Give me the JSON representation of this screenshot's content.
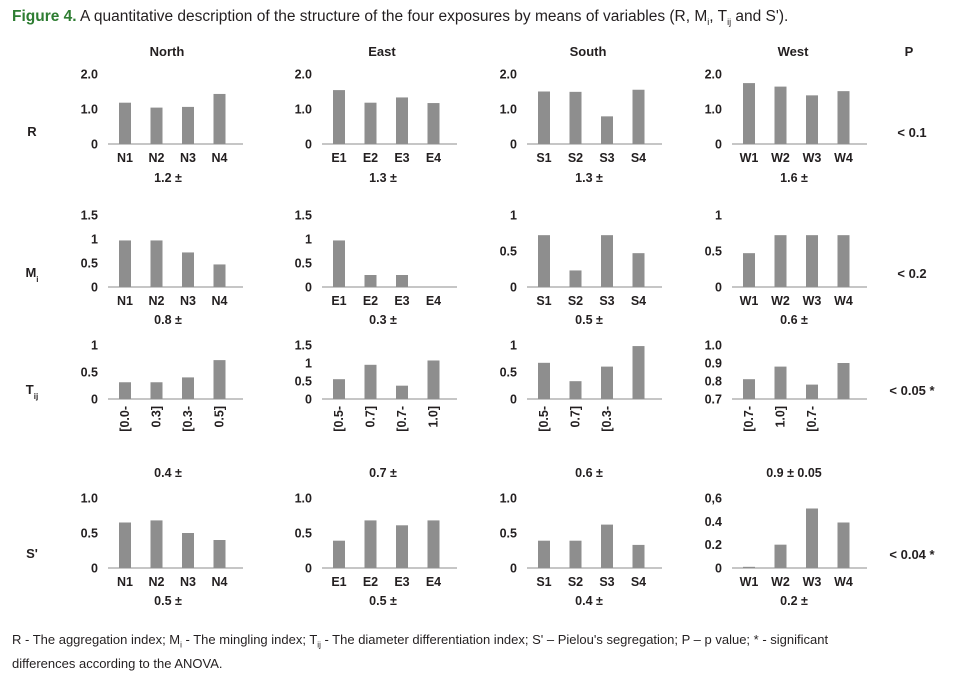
{
  "caption": {
    "label": "Figure 4.",
    "text_before": " A quantitative description of the structure of the four exposures by means of variables (R, M",
    "sub_i": "i",
    "text_mid": ", T",
    "sub_ij": "ij",
    "text_after": " and S')."
  },
  "columns": [
    "North",
    "East",
    "South",
    "West"
  ],
  "p_header": "P",
  "rows": [
    {
      "label": "R",
      "sub": "",
      "p": "< 0.1"
    },
    {
      "label": "M",
      "sub": "i",
      "p": "< 0.2"
    },
    {
      "label": "T",
      "sub": "ij",
      "p": "< 0.05 *"
    },
    {
      "label": "S'",
      "sub": "",
      "p": "< 0.04 *"
    }
  ],
  "footnote": {
    "l1_a": "R - The aggregation index; M",
    "l1_sub1": "i",
    "l1_b": " - The mingling index; T",
    "l1_sub2": "ij",
    "l1_c": " - The diameter differentiation index; S' – Pielou's segregation; P – p value; * - significant",
    "l2": "differences according to the ANOVA."
  },
  "colors": {
    "bar": "#8e8e8e",
    "axis": "#8e8e8e",
    "caption_label": "#2e7d32"
  },
  "chart_data": [
    {
      "type": "bar",
      "row": "R",
      "exposure": "North",
      "categories": [
        "N1",
        "N2",
        "N3",
        "N4"
      ],
      "values": [
        1.18,
        1.04,
        1.06,
        1.43
      ],
      "ylim": [
        0,
        2.0
      ],
      "yticks": [
        "2.0",
        "1.0",
        "0"
      ],
      "ytick_values": [
        2.0,
        1.0,
        0
      ],
      "summary": "1.2 ±"
    },
    {
      "type": "bar",
      "row": "R",
      "exposure": "East",
      "categories": [
        "E1",
        "E2",
        "E3",
        "E4"
      ],
      "values": [
        1.54,
        1.18,
        1.33,
        1.17
      ],
      "ylim": [
        0,
        2.0
      ],
      "yticks": [
        "2.0",
        "1.0",
        "0"
      ],
      "ytick_values": [
        2.0,
        1.0,
        0
      ],
      "summary": "1.3 ±"
    },
    {
      "type": "bar",
      "row": "R",
      "exposure": "South",
      "categories": [
        "S1",
        "S2",
        "S3",
        "S4"
      ],
      "values": [
        1.5,
        1.49,
        0.79,
        1.55
      ],
      "ylim": [
        0,
        2.0
      ],
      "yticks": [
        "2.0",
        "1.0",
        "0"
      ],
      "ytick_values": [
        2.0,
        1.0,
        0
      ],
      "summary": "1.3 ±"
    },
    {
      "type": "bar",
      "row": "R",
      "exposure": "West",
      "categories": [
        "W1",
        "W2",
        "W3",
        "W4"
      ],
      "values": [
        1.74,
        1.64,
        1.39,
        1.51
      ],
      "ylim": [
        0,
        2.0
      ],
      "yticks": [
        "2.0",
        "1.0",
        "0"
      ],
      "ytick_values": [
        2.0,
        1.0,
        0
      ],
      "summary": "1.6 ±"
    },
    {
      "type": "bar",
      "row": "Mi",
      "exposure": "North",
      "categories": [
        "N1",
        "N2",
        "N3",
        "N4"
      ],
      "values": [
        0.97,
        0.97,
        0.72,
        0.47
      ],
      "ylim": [
        0,
        1.5
      ],
      "yticks": [
        "1.5",
        "1",
        "0.5",
        "0"
      ],
      "ytick_values": [
        1.5,
        1,
        0.5,
        0
      ],
      "summary": "0.8 ±"
    },
    {
      "type": "bar",
      "row": "Mi",
      "exposure": "East",
      "categories": [
        "E1",
        "E2",
        "E3",
        "E4"
      ],
      "values": [
        0.97,
        0.25,
        0.25,
        0
      ],
      "ylim": [
        0,
        1.5
      ],
      "yticks": [
        "1.5",
        "1",
        "0.5",
        "0"
      ],
      "ytick_values": [
        1.5,
        1,
        0.5,
        0
      ],
      "summary": "0.3 ±"
    },
    {
      "type": "bar",
      "row": "Mi",
      "exposure": "South",
      "categories": [
        "S1",
        "S2",
        "S3",
        "S4"
      ],
      "values": [
        0.72,
        0.23,
        0.72,
        0.47
      ],
      "ylim": [
        0,
        1
      ],
      "yticks": [
        "1",
        "0.5",
        "0"
      ],
      "ytick_values": [
        1,
        0.5,
        0
      ],
      "summary": "0.5 ±"
    },
    {
      "type": "bar",
      "row": "Mi",
      "exposure": "West",
      "categories": [
        "W1",
        "W2",
        "W3",
        "W4"
      ],
      "values": [
        0.47,
        0.72,
        0.72,
        0.72
      ],
      "ylim": [
        0,
        1
      ],
      "yticks": [
        "1",
        "0.5",
        "0"
      ],
      "ytick_values": [
        1,
        0.5,
        0
      ],
      "summary": "0.6 ±"
    },
    {
      "type": "bar",
      "row": "Tij",
      "exposure": "North",
      "categories": [
        "[0.0-",
        "0.3]",
        "[0.3-",
        "0.5]"
      ],
      "values": [
        0.31,
        0.31,
        0.4,
        0.72
      ],
      "ylim": [
        0,
        1
      ],
      "ybase": 0,
      "yticks": [
        "1",
        "0.5",
        "0"
      ],
      "ytick_values": [
        1,
        0.5,
        0
      ],
      "summary": "0.4 ±"
    },
    {
      "type": "bar",
      "row": "Tij",
      "exposure": "East",
      "categories": [
        "[0.5-",
        "0.7]",
        "[0.7-",
        "1.0]"
      ],
      "values": [
        0.55,
        0.95,
        0.37,
        1.07
      ],
      "ylim": [
        0,
        1.5
      ],
      "ybase": 0,
      "yticks": [
        "1.5",
        "1",
        "0.5",
        "0"
      ],
      "ytick_values": [
        1.5,
        1,
        0.5,
        0
      ],
      "summary": "0.7 ±"
    },
    {
      "type": "bar",
      "row": "Tij",
      "exposure": "South",
      "categories": [
        "[0.5-",
        "0.7]",
        "[0.3-",
        ""
      ],
      "values": [
        0.67,
        0.33,
        0.6,
        0.98
      ],
      "ylim": [
        0,
        1
      ],
      "ybase": 0,
      "yticks": [
        "1",
        "0.5",
        "0"
      ],
      "ytick_values": [
        1,
        0.5,
        0
      ],
      "summary": "0.6 ±"
    },
    {
      "type": "bar",
      "row": "Tij",
      "exposure": "West",
      "categories": [
        "[0.7-",
        "1.0]",
        "[0.7-",
        ""
      ],
      "values": [
        0.81,
        0.88,
        0.78,
        0.9
      ],
      "ylim": [
        0.7,
        1.0
      ],
      "ybase": 0.7,
      "yticks": [
        "1.0",
        "0.9",
        "0.8",
        "0.7"
      ],
      "ytick_values": [
        1.0,
        0.9,
        0.8,
        0.7
      ],
      "summary": "0.9 ± 0.05"
    },
    {
      "type": "bar",
      "row": "S'",
      "exposure": "North",
      "categories": [
        "N1",
        "N2",
        "N3",
        "N4"
      ],
      "values": [
        0.65,
        0.68,
        0.5,
        0.4
      ],
      "ylim": [
        0,
        1.0
      ],
      "yticks": [
        "1.0",
        "0.5",
        "0"
      ],
      "ytick_values": [
        1.0,
        0.5,
        0
      ],
      "summary": "0.5 ±"
    },
    {
      "type": "bar",
      "row": "S'",
      "exposure": "East",
      "categories": [
        "E1",
        "E2",
        "E3",
        "E4"
      ],
      "values": [
        0.39,
        0.68,
        0.61,
        0.68
      ],
      "ylim": [
        0,
        1.0
      ],
      "yticks": [
        "1.0",
        "0.5",
        "0"
      ],
      "ytick_values": [
        1.0,
        0.5,
        0
      ],
      "summary": "0.5 ±"
    },
    {
      "type": "bar",
      "row": "S'",
      "exposure": "South",
      "categories": [
        "S1",
        "S2",
        "S3",
        "S4"
      ],
      "values": [
        0.39,
        0.39,
        0.62,
        0.33
      ],
      "ylim": [
        0,
        1.0
      ],
      "yticks": [
        "1.0",
        "0.5",
        "0"
      ],
      "ytick_values": [
        1.0,
        0.5,
        0
      ],
      "summary": "0.4 ±"
    },
    {
      "type": "bar",
      "row": "S'",
      "exposure": "West",
      "categories": [
        "W1",
        "W2",
        "W3",
        "W4"
      ],
      "values": [
        0.01,
        0.2,
        0.51,
        0.39
      ],
      "ylim": [
        0,
        0.6
      ],
      "yticks": [
        "0,6",
        "0.4",
        "0.2",
        "0"
      ],
      "ytick_values": [
        0.6,
        0.4,
        0.2,
        0
      ],
      "summary": "0.2 ±"
    }
  ]
}
